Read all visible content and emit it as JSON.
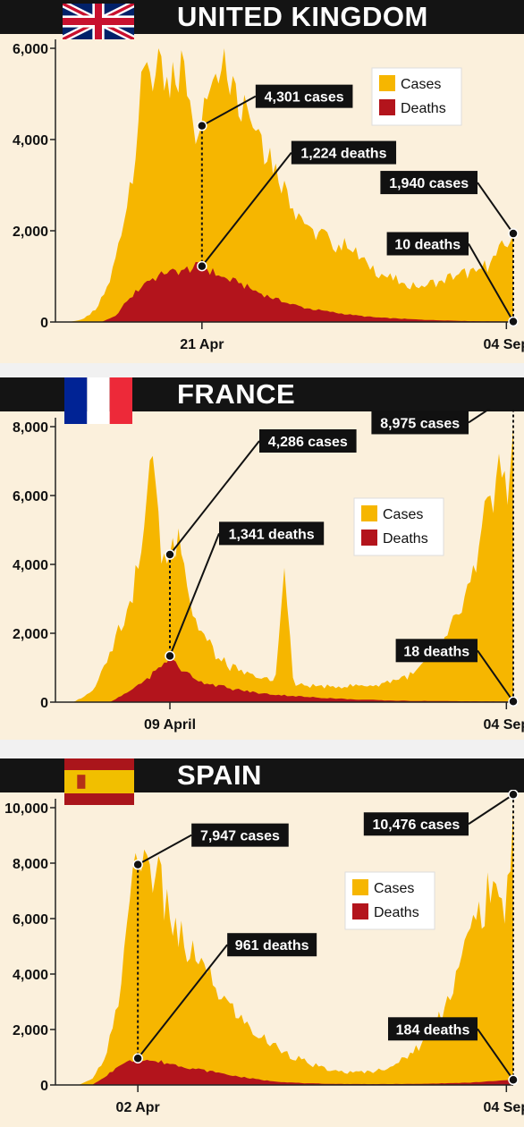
{
  "colors": {
    "cases": "#f6b600",
    "deaths": "#b3141c",
    "bg": "#fbf0dc",
    "title_bg": "#141414"
  },
  "chart_data": [
    {
      "type": "area",
      "title": "UNITED KINGDOM",
      "flag": "uk-flag",
      "ylim": [
        0,
        6000
      ],
      "yticks": [
        {
          "v": 0,
          "label": "0"
        },
        {
          "v": 2000,
          "label": "2,000"
        },
        {
          "v": 4000,
          "label": "4,000"
        },
        {
          "v": 6000,
          "label": "6,000"
        }
      ],
      "xticks": [
        {
          "t": 0.32,
          "label": "21 Apr"
        },
        {
          "t": 0.985,
          "label": "04 Sep"
        }
      ],
      "legend": [
        "Cases",
        "Deaths"
      ],
      "series": [
        {
          "name": "Cases",
          "key": [
            [
              0,
              0
            ],
            [
              0.03,
              0
            ],
            [
              0.06,
              60
            ],
            [
              0.09,
              280
            ],
            [
              0.12,
              900
            ],
            [
              0.15,
              2200
            ],
            [
              0.18,
              4300
            ],
            [
              0.2,
              5700
            ],
            [
              0.22,
              5400
            ],
            [
              0.25,
              4900
            ],
            [
              0.28,
              5800
            ],
            [
              0.3,
              4400
            ],
            [
              0.32,
              4301
            ],
            [
              0.34,
              5200
            ],
            [
              0.37,
              6050
            ],
            [
              0.39,
              5300
            ],
            [
              0.42,
              4700
            ],
            [
              0.45,
              4100
            ],
            [
              0.48,
              3500
            ],
            [
              0.5,
              3100
            ],
            [
              0.53,
              2400
            ],
            [
              0.56,
              2050
            ],
            [
              0.6,
              1800
            ],
            [
              0.64,
              1600
            ],
            [
              0.68,
              1300
            ],
            [
              0.72,
              1000
            ],
            [
              0.76,
              850
            ],
            [
              0.8,
              800
            ],
            [
              0.84,
              900
            ],
            [
              0.88,
              1050
            ],
            [
              0.92,
              1100
            ],
            [
              0.95,
              1300
            ],
            [
              0.98,
              1650
            ],
            [
              1,
              1940
            ]
          ],
          "jitter": 0.28
        },
        {
          "name": "Deaths",
          "key": [
            [
              0,
              0
            ],
            [
              0.1,
              0
            ],
            [
              0.13,
              120
            ],
            [
              0.16,
              500
            ],
            [
              0.2,
              900
            ],
            [
              0.24,
              1050
            ],
            [
              0.28,
              1150
            ],
            [
              0.32,
              1224
            ],
            [
              0.36,
              1000
            ],
            [
              0.4,
              850
            ],
            [
              0.45,
              620
            ],
            [
              0.5,
              430
            ],
            [
              0.55,
              300
            ],
            [
              0.6,
              220
            ],
            [
              0.65,
              150
            ],
            [
              0.7,
              100
            ],
            [
              0.8,
              50
            ],
            [
              0.9,
              20
            ],
            [
              1,
              10
            ]
          ],
          "jitter": 0.2
        }
      ],
      "annotations": [
        {
          "text": "4,301 cases",
          "pt": [
            0.32,
            4301
          ],
          "box": "right"
        },
        {
          "text": "1,224 deaths",
          "pt": [
            0.32,
            1224
          ],
          "box": "upright"
        },
        {
          "text": "1,940 cases",
          "pt": [
            1,
            1940
          ],
          "box": "up"
        },
        {
          "text": "10 deaths",
          "pt": [
            1,
            10
          ],
          "box": "up2"
        }
      ]
    },
    {
      "type": "area",
      "title": "FRANCE",
      "flag": "france-flag",
      "ylim": [
        0,
        8000
      ],
      "yticks": [
        {
          "v": 0,
          "label": "0"
        },
        {
          "v": 2000,
          "label": "2,000"
        },
        {
          "v": 4000,
          "label": "4,000"
        },
        {
          "v": 6000,
          "label": "6,000"
        },
        {
          "v": 8000,
          "label": "8,000"
        }
      ],
      "xticks": [
        {
          "t": 0.25,
          "label": "09 April"
        },
        {
          "t": 0.985,
          "label": "04 Sep"
        }
      ],
      "legend": [
        "Cases",
        "Deaths"
      ],
      "series": [
        {
          "name": "Cases",
          "key": [
            [
              0,
              0
            ],
            [
              0.04,
              0
            ],
            [
              0.08,
              300
            ],
            [
              0.12,
              1500
            ],
            [
              0.16,
              2800
            ],
            [
              0.19,
              4500
            ],
            [
              0.21,
              7600
            ],
            [
              0.23,
              4000
            ],
            [
              0.25,
              4286
            ],
            [
              0.27,
              5100
            ],
            [
              0.3,
              2500
            ],
            [
              0.33,
              1800
            ],
            [
              0.36,
              1200
            ],
            [
              0.4,
              900
            ],
            [
              0.44,
              700
            ],
            [
              0.48,
              600
            ],
            [
              0.5,
              3900
            ],
            [
              0.52,
              500
            ],
            [
              0.6,
              450
            ],
            [
              0.7,
              500
            ],
            [
              0.78,
              800
            ],
            [
              0.84,
              1500
            ],
            [
              0.88,
              2500
            ],
            [
              0.92,
              3800
            ],
            [
              0.95,
              6000
            ],
            [
              0.97,
              7300
            ],
            [
              0.99,
              5500
            ],
            [
              1,
              8975
            ]
          ],
          "jitter": 0.3
        },
        {
          "name": "Deaths",
          "key": [
            [
              0,
              0
            ],
            [
              0.12,
              0
            ],
            [
              0.16,
              300
            ],
            [
              0.2,
              700
            ],
            [
              0.23,
              1000
            ],
            [
              0.25,
              1341
            ],
            [
              0.28,
              900
            ],
            [
              0.32,
              600
            ],
            [
              0.38,
              400
            ],
            [
              0.45,
              250
            ],
            [
              0.55,
              150
            ],
            [
              0.65,
              80
            ],
            [
              0.75,
              40
            ],
            [
              0.9,
              25
            ],
            [
              1,
              18
            ]
          ],
          "jitter": 0.25
        }
      ],
      "annotations": [
        {
          "text": "4,286 cases",
          "pt": [
            0.25,
            4286
          ],
          "box": "upright"
        },
        {
          "text": "1,341 deaths",
          "pt": [
            0.25,
            1341
          ],
          "box": "upright2"
        },
        {
          "text": "8,975 cases",
          "pt": [
            1,
            8975
          ],
          "box": "left"
        },
        {
          "text": "18 deaths",
          "pt": [
            1,
            18
          ],
          "box": "up"
        }
      ]
    },
    {
      "type": "area",
      "title": "SPAIN",
      "flag": "spain-flag",
      "ylim": [
        0,
        10000
      ],
      "yticks": [
        {
          "v": 0,
          "label": "0"
        },
        {
          "v": 2000,
          "label": "2,000"
        },
        {
          "v": 4000,
          "label": "4,000"
        },
        {
          "v": 6000,
          "label": "6,000"
        },
        {
          "v": 8000,
          "label": "8,000"
        },
        {
          "v": 10000,
          "label": "10,000"
        }
      ],
      "xticks": [
        {
          "t": 0.18,
          "label": "02 Apr"
        },
        {
          "t": 0.985,
          "label": "04 Sep"
        }
      ],
      "legend": [
        "Cases",
        "Deaths"
      ],
      "series": [
        {
          "name": "Cases",
          "key": [
            [
              0,
              0
            ],
            [
              0.05,
              0
            ],
            [
              0.08,
              200
            ],
            [
              0.11,
              1000
            ],
            [
              0.14,
              3000
            ],
            [
              0.16,
              6500
            ],
            [
              0.18,
              7947
            ],
            [
              0.2,
              8300
            ],
            [
              0.22,
              7500
            ],
            [
              0.25,
              6000
            ],
            [
              0.28,
              5000
            ],
            [
              0.31,
              4400
            ],
            [
              0.35,
              3500
            ],
            [
              0.4,
              2400
            ],
            [
              0.45,
              1700
            ],
            [
              0.5,
              1200
            ],
            [
              0.55,
              800
            ],
            [
              0.6,
              500
            ],
            [
              0.65,
              450
            ],
            [
              0.7,
              500
            ],
            [
              0.75,
              800
            ],
            [
              0.8,
              1500
            ],
            [
              0.85,
              2800
            ],
            [
              0.88,
              4200
            ],
            [
              0.92,
              6000
            ],
            [
              0.96,
              7500
            ],
            [
              0.98,
              5500
            ],
            [
              1,
              10476
            ]
          ],
          "jitter": 0.3
        },
        {
          "name": "Deaths",
          "key": [
            [
              0,
              0
            ],
            [
              0.08,
              0
            ],
            [
              0.11,
              300
            ],
            [
              0.14,
              700
            ],
            [
              0.18,
              961
            ],
            [
              0.22,
              850
            ],
            [
              0.26,
              750
            ],
            [
              0.3,
              600
            ],
            [
              0.35,
              450
            ],
            [
              0.4,
              300
            ],
            [
              0.45,
              180
            ],
            [
              0.5,
              100
            ],
            [
              0.55,
              60
            ],
            [
              0.6,
              40
            ],
            [
              0.7,
              30
            ],
            [
              0.8,
              40
            ],
            [
              0.9,
              80
            ],
            [
              1,
              184
            ]
          ],
          "jitter": 0.2
        }
      ],
      "annotations": [
        {
          "text": "7,947 cases",
          "pt": [
            0.18,
            7947
          ],
          "box": "right"
        },
        {
          "text": "961 deaths",
          "pt": [
            0.18,
            961
          ],
          "box": "upright"
        },
        {
          "text": "10,476 cases",
          "pt": [
            1,
            10476
          ],
          "box": "left"
        },
        {
          "text": "184 deaths",
          "pt": [
            1,
            184
          ],
          "box": "up"
        }
      ]
    }
  ]
}
